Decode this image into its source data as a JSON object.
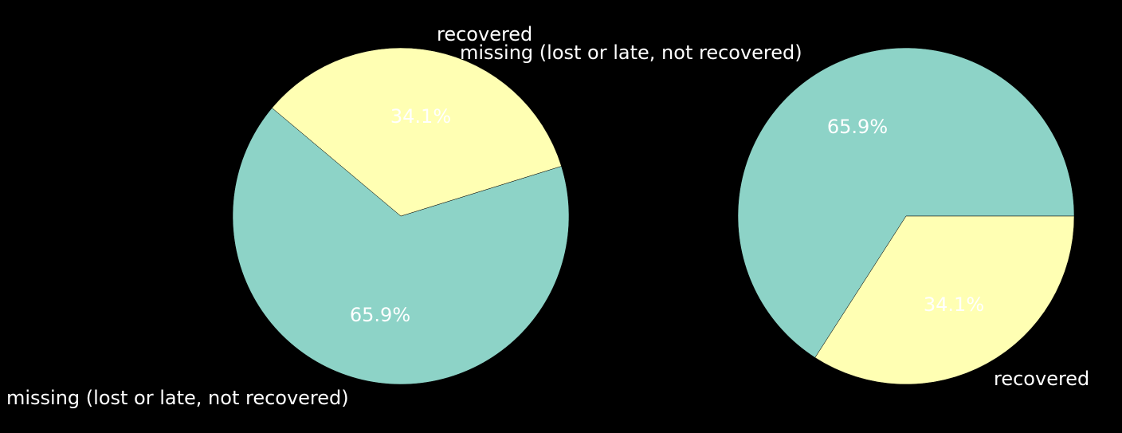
{
  "chart_data": [
    {
      "type": "pie",
      "categories": [
        "missing (lost or late, not recovered)",
        "recovered"
      ],
      "values": [
        65.9,
        34.1
      ],
      "value_labels": [
        "65.9%",
        "34.1%"
      ],
      "colors": [
        "#8dd3c7",
        "#ffffb3"
      ],
      "start_angle_deg": 140,
      "direction": "counterclockwise"
    },
    {
      "type": "pie",
      "categories": [
        "missing (lost or late, not recovered)",
        "recovered"
      ],
      "values": [
        65.9,
        34.1
      ],
      "value_labels": [
        "65.9%",
        "34.1%"
      ],
      "colors": [
        "#8dd3c7",
        "#ffffb3"
      ],
      "start_angle_deg": 0,
      "direction": "counterclockwise"
    }
  ],
  "style": {
    "background": "#000000",
    "text_color": "#ffffff"
  }
}
